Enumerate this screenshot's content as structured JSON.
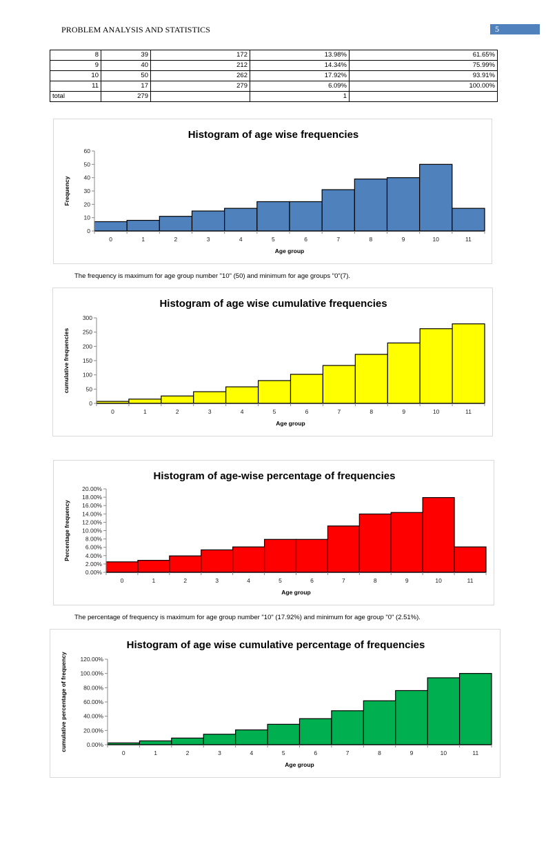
{
  "header": {
    "title": "PROBLEM ANALYSIS AND STATISTICS",
    "page_number": "5",
    "page_number_bg": "#4f81bd"
  },
  "table": {
    "rows": [
      [
        "8",
        "39",
        "172",
        "13.98%",
        "61.65%"
      ],
      [
        "9",
        "40",
        "212",
        "14.34%",
        "75.99%"
      ],
      [
        "10",
        "50",
        "262",
        "17.92%",
        "93.91%"
      ],
      [
        "11",
        "17",
        "279",
        "6.09%",
        "100.00%"
      ]
    ],
    "total_row": [
      "total",
      "279",
      "",
      "1",
      ""
    ]
  },
  "captions": {
    "frequency": "The frequency is maximum for age group number \"10\" (50) and minimum for age groups \"0\"(7).",
    "percentage": "The percentage of frequency is maximum for age group number \"10\" (17.92%) and minimum for age group \"0\" (2.51%)."
  },
  "chart_data": [
    {
      "id": "freq",
      "type": "bar",
      "title": "Histogram of age wise frequencies",
      "xlabel": "Age group",
      "ylabel": "Frequency",
      "categories": [
        "0",
        "1",
        "2",
        "3",
        "4",
        "5",
        "6",
        "7",
        "8",
        "9",
        "10",
        "11"
      ],
      "values": [
        7,
        8,
        11,
        15,
        17,
        22,
        22,
        31,
        39,
        40,
        50,
        17
      ],
      "ylim": [
        0,
        60
      ],
      "yticks": [
        0,
        10,
        20,
        30,
        40,
        50,
        60
      ],
      "ytick_labels": [
        "0",
        "10",
        "20",
        "30",
        "40",
        "50",
        "60"
      ],
      "color": "#4f81bd",
      "grid": false,
      "legend": "none"
    },
    {
      "id": "cumfreq",
      "type": "bar",
      "title": "Histogram of age wise cumulative frequencies",
      "xlabel": "Age group",
      "ylabel": "cumulative frequencies",
      "categories": [
        "0",
        "1",
        "2",
        "3",
        "4",
        "5",
        "6",
        "7",
        "8",
        "9",
        "10",
        "11"
      ],
      "values": [
        7,
        15,
        26,
        41,
        58,
        80,
        102,
        133,
        172,
        212,
        262,
        279
      ],
      "ylim": [
        0,
        300
      ],
      "yticks": [
        0,
        50,
        100,
        150,
        200,
        250,
        300
      ],
      "ytick_labels": [
        "0",
        "50",
        "100",
        "150",
        "200",
        "250",
        "300"
      ],
      "color": "#ffff00",
      "grid": false,
      "legend": "none"
    },
    {
      "id": "pct",
      "type": "bar",
      "title": "Histogram of age-wise percentage of frequencies",
      "xlabel": "Age group",
      "ylabel": "Percentage frequency",
      "categories": [
        "0",
        "1",
        "2",
        "3",
        "4",
        "5",
        "6",
        "7",
        "8",
        "9",
        "10",
        "11"
      ],
      "values": [
        2.51,
        2.87,
        3.94,
        5.38,
        6.09,
        7.89,
        7.89,
        11.11,
        13.98,
        14.34,
        17.92,
        6.09
      ],
      "unit": "%",
      "ylim": [
        0,
        20
      ],
      "yticks": [
        0,
        2,
        4,
        6,
        8,
        10,
        12,
        14,
        16,
        18,
        20
      ],
      "ytick_labels": [
        "0.00%",
        "2.00%",
        "4.00%",
        "6.00%",
        "8.00%",
        "10.00%",
        "12.00%",
        "14.00%",
        "16.00%",
        "18.00%",
        "20.00%"
      ],
      "color": "#ff0000",
      "grid": false,
      "legend": "none"
    },
    {
      "id": "cumpct",
      "type": "bar",
      "title": "Histogram of age wise cumulative percentage of frequencies",
      "xlabel": "Age group",
      "ylabel": "cumulative percentage of frequency",
      "categories": [
        "0",
        "1",
        "2",
        "3",
        "4",
        "5",
        "6",
        "7",
        "8",
        "9",
        "10",
        "11"
      ],
      "values": [
        2.51,
        5.38,
        9.32,
        14.7,
        20.79,
        28.67,
        36.56,
        47.67,
        61.65,
        75.99,
        93.91,
        100.0
      ],
      "unit": "%",
      "ylim": [
        0,
        120
      ],
      "yticks": [
        0,
        20,
        40,
        60,
        80,
        100,
        120
      ],
      "ytick_labels": [
        "0.00%",
        "20.00%",
        "40.00%",
        "60.00%",
        "80.00%",
        "100.00%",
        "120.00%"
      ],
      "color": "#00b050",
      "grid": false,
      "legend": "none"
    }
  ]
}
